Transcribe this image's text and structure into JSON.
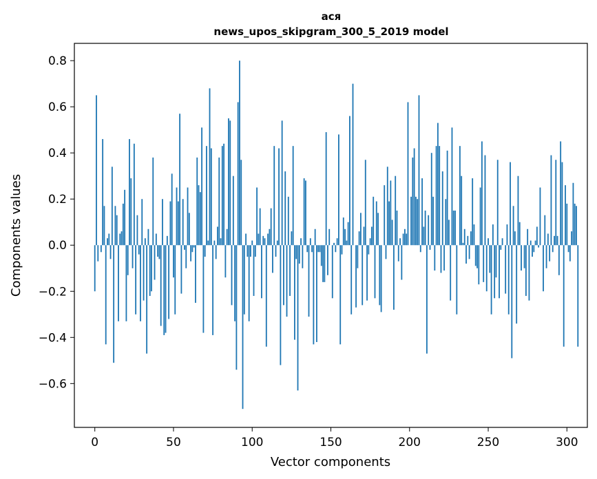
{
  "chart_data": {
    "type": "bar",
    "title_line1": "ася",
    "title_line2": "news_upos_skipgram_300_5_2019 model",
    "xlabel": "Vector components",
    "ylabel": "Components values",
    "xlim": [
      -13,
      313
    ],
    "ylim": [
      -0.79,
      0.875
    ],
    "xticks": [
      0,
      50,
      100,
      150,
      200,
      250,
      300
    ],
    "xtick_labels": [
      "0",
      "50",
      "100",
      "150",
      "200",
      "250",
      "300"
    ],
    "yticks": [
      -0.6,
      -0.4,
      -0.2,
      0.0,
      0.2,
      0.4,
      0.6,
      0.8
    ],
    "ytick_labels": [
      "−0.6",
      "−0.4",
      "−0.2",
      "0.0",
      "0.2",
      "0.4",
      "0.6",
      "0.8"
    ],
    "bar_color": "#1f77b4",
    "grid": false,
    "values": [
      -0.2,
      0.65,
      -0.07,
      0,
      -0.03,
      0.46,
      0.17,
      -0.43,
      0.03,
      0.05,
      -0.06,
      0.34,
      -0.51,
      0.17,
      0.13,
      -0.33,
      0.05,
      0.06,
      0.18,
      0.24,
      -0.33,
      -0.13,
      0.46,
      0.29,
      -0.1,
      0.44,
      -0.3,
      0.13,
      -0.04,
      -0.33,
      0.2,
      -0.24,
      0.03,
      -0.47,
      0.07,
      -0.22,
      -0.2,
      0.38,
      -0.15,
      0.05,
      -0.05,
      -0.06,
      -0.35,
      0.2,
      -0.39,
      -0.38,
      0.04,
      -0.32,
      0.19,
      0.31,
      -0.14,
      -0.3,
      0.25,
      0.19,
      0.57,
      -0.21,
      0.2,
      -0.02,
      -0.1,
      0.25,
      0.14,
      -0.07,
      -0.03,
      -0.01,
      -0.25,
      0.38,
      0.26,
      0.23,
      0.51,
      -0.38,
      -0.05,
      0.43,
      0.02,
      0.68,
      0.42,
      -0.39,
      0.02,
      -0.06,
      0.08,
      0.38,
      0.03,
      0.43,
      0.44,
      -0.14,
      0.07,
      0.55,
      0.54,
      -0.26,
      0.3,
      -0.33,
      -0.54,
      0.62,
      0.8,
      0.37,
      -0.71,
      -0.3,
      0.05,
      -0.05,
      -0.33,
      -0.05,
      0.02,
      -0.22,
      -0.05,
      0.25,
      0.05,
      0.16,
      -0.23,
      0.04,
      0.03,
      -0.44,
      0.05,
      0.07,
      0.16,
      -0.12,
      0.43,
      -0.05,
      0.02,
      0.42,
      -0.52,
      0.54,
      -0.26,
      0.32,
      -0.31,
      0.21,
      -0.22,
      0.06,
      0.43,
      -0.41,
      -0.06,
      -0.63,
      -0.08,
      0.03,
      -0.1,
      0.29,
      0.28,
      -0.03,
      -0.31,
      0.03,
      -0.03,
      -0.43,
      0.07,
      -0.42,
      -0.03,
      -0.03,
      -0.09,
      -0.16,
      -0.16,
      0.49,
      -0.13,
      0.07,
      0,
      -0.23,
      0.01,
      -0.03,
      0.03,
      0.48,
      -0.43,
      -0.04,
      0.12,
      0.07,
      0.02,
      0.1,
      0.56,
      -0.3,
      0.7,
      0,
      -0.27,
      -0.1,
      0.06,
      0.14,
      -0.26,
      0.08,
      0.37,
      -0.24,
      -0.04,
      0.03,
      0.08,
      0.21,
      -0.23,
      0.19,
      0.14,
      -0.26,
      -0.29,
      0,
      0.26,
      -0.06,
      0.34,
      0.19,
      0.28,
      0.11,
      -0.28,
      0.3,
      0.15,
      -0.07,
      0.03,
      -0.15,
      0.05,
      0.07,
      0.05,
      0.62,
      0,
      0.21,
      0.38,
      0.42,
      0.21,
      0.2,
      0.65,
      -0.03,
      0.29,
      0.08,
      0.15,
      -0.47,
      0.13,
      -0.02,
      0.4,
      0.21,
      -0.11,
      0.43,
      0.53,
      0.43,
      -0.12,
      0.32,
      -0.11,
      0.2,
      0.41,
      0.11,
      -0.24,
      0.51,
      0.15,
      0.15,
      -0.3,
      0,
      0.43,
      0.3,
      0.01,
      0.07,
      -0.08,
      0.04,
      -0.06,
      0.06,
      0.29,
      0.09,
      -0.09,
      -0.1,
      -0.17,
      0.25,
      0.45,
      -0.16,
      0.39,
      -0.2,
      0.03,
      -0.12,
      -0.3,
      0.09,
      -0.23,
      -0.14,
      0.37,
      -0.23,
      -0.02,
      0.03,
      0,
      -0.21,
      0.09,
      -0.3,
      0.36,
      -0.49,
      0.17,
      0.06,
      -0.34,
      0.3,
      0.1,
      -0.11,
      0,
      -0.1,
      -0.22,
      0.07,
      -0.24,
      0.02,
      -0.05,
      -0.03,
      0.02,
      0.08,
      -0.01,
      0.25,
      0,
      -0.2,
      0.13,
      -0.1,
      0.05,
      -0.07,
      0.39,
      -0.03,
      0.04,
      0.37,
      0.04,
      -0.13,
      0.45,
      0.36,
      -0.44,
      0.26,
      0.18,
      -0.03,
      -0.07,
      0.06,
      0.27,
      0.18,
      0.17,
      -0.44
    ]
  }
}
